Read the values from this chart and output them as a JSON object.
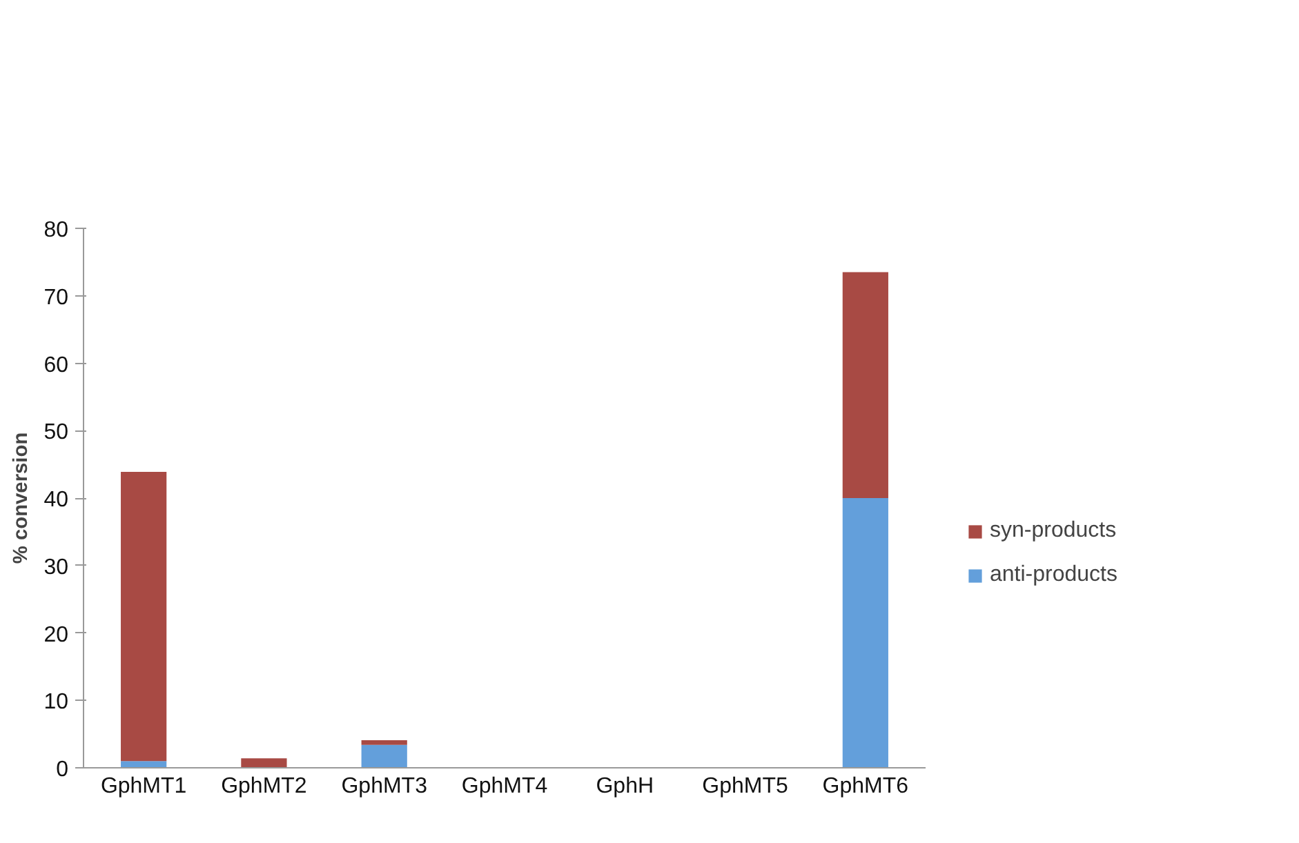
{
  "chart_data": {
    "type": "bar",
    "stacked": true,
    "ylabel": "% conversion",
    "categories": [
      "GphMT1",
      "GphMT2",
      "GphMT3",
      "GphMT4",
      "GphH",
      "GphMT5",
      "GphMT6"
    ],
    "series": [
      {
        "name": "anti-products",
        "color": "#639fdb",
        "values": [
          1.0,
          0,
          3.4,
          0,
          0,
          0,
          40
        ]
      },
      {
        "name": "syn-products",
        "color": "#a84a44",
        "values": [
          42.9,
          1.4,
          0.7,
          0,
          0,
          0,
          33.5
        ]
      }
    ],
    "ylim": [
      0,
      80
    ],
    "yticks": [
      0,
      10,
      20,
      30,
      40,
      50,
      60,
      70,
      80
    ],
    "grid": false,
    "legend": "right"
  }
}
